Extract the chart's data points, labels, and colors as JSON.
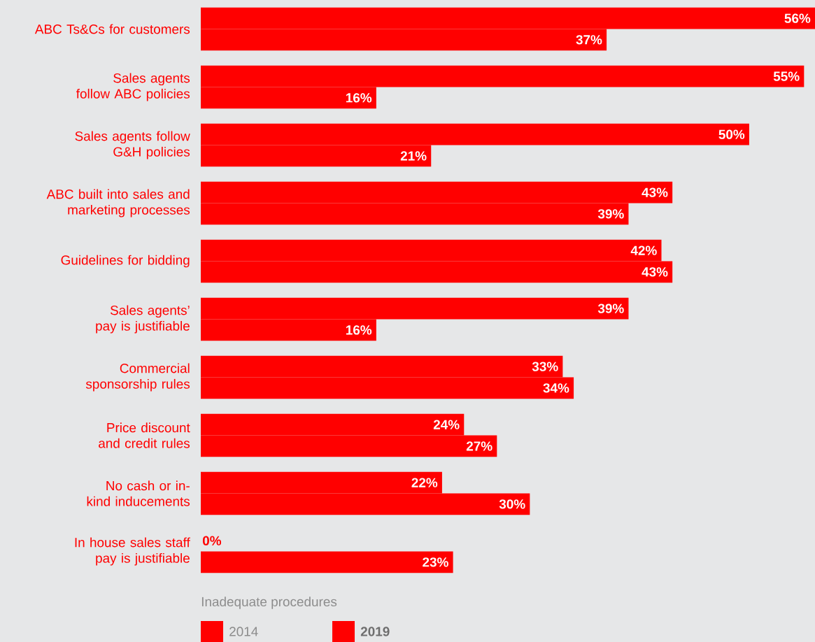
{
  "chart_data": {
    "type": "bar",
    "orientation": "horizontal",
    "categories": [
      "ABC Ts&Cs for customers",
      "Sales agents follow ABC policies",
      "Sales agents follow G&H policies",
      "ABC built into sales and marketing processes",
      "Guidelines for bidding",
      "Sales agents’ pay is justifiable",
      "Commercial sponsorship rules",
      "Price discount and credit rules",
      "No cash or in-kind inducements",
      "In house sales staff pay is justifiable"
    ],
    "series": [
      {
        "name": "2014",
        "color": "#ff0000",
        "values": [
          56,
          55,
          50,
          43,
          42,
          39,
          33,
          24,
          22,
          0
        ],
        "value_labels": [
          "56%",
          "55%",
          "50%",
          "43%",
          "42%",
          "39%",
          "33%",
          "24%",
          "22%",
          "0%"
        ]
      },
      {
        "name": "2019",
        "color": "#ff0000",
        "values": [
          37,
          16,
          21,
          39,
          43,
          16,
          34,
          27,
          30,
          23
        ],
        "value_labels": [
          "37%",
          "16%",
          "21%",
          "39%",
          "43%",
          "16%",
          "34%",
          "27%",
          "30%",
          "23%"
        ]
      }
    ],
    "legend_title": "Inadequate procedures",
    "legend": "bottom left"
  }
}
